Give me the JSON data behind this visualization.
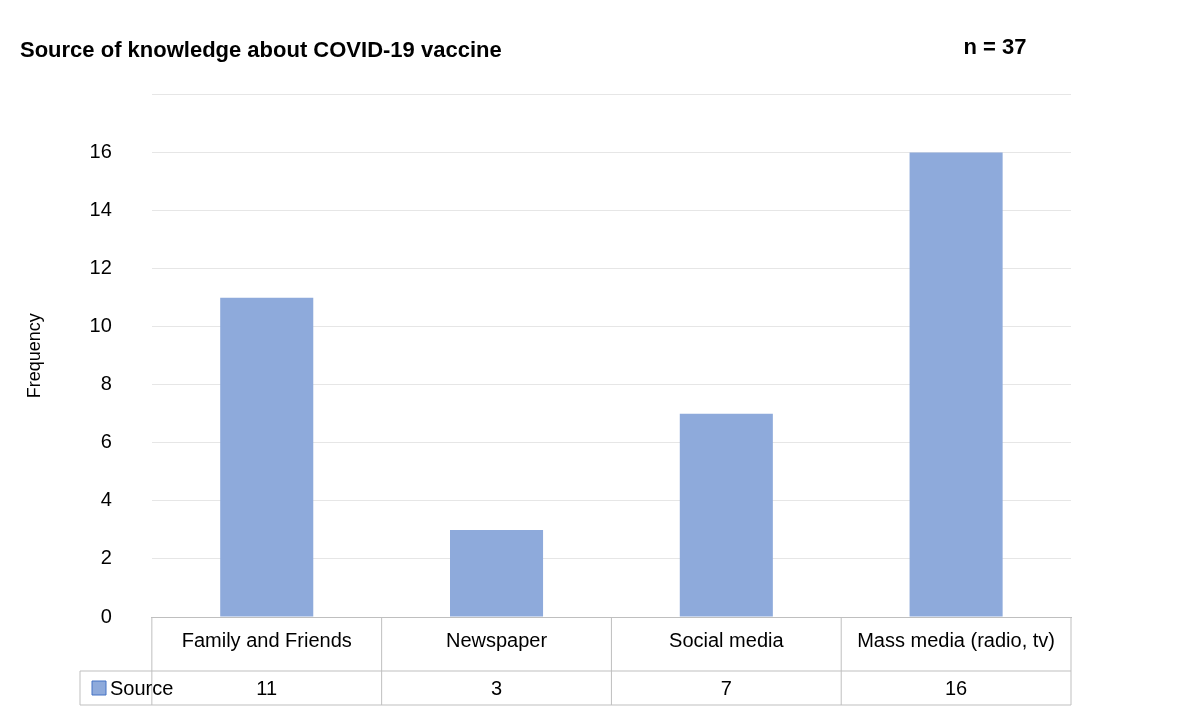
{
  "chart_data": {
    "type": "bar",
    "title": "Source of knowledge about COVID-19 vaccine",
    "annotations": [
      "n = 37"
    ],
    "ylabel": "Frequency",
    "categories": [
      "Family and Friends",
      "Newspaper",
      "Social media",
      "Mass media (radio, tv)"
    ],
    "series": [
      {
        "name": "Source",
        "color": "#8eaadb",
        "values": [
          11,
          3,
          7,
          16
        ]
      }
    ],
    "ylim": [
      0,
      18
    ],
    "yticks": [
      0,
      2,
      4,
      6,
      8,
      10,
      12,
      14,
      16,
      {
        "value": 18,
        "label": null
      }
    ],
    "grid": "y",
    "legend": "bottom",
    "data_labels": true
  }
}
